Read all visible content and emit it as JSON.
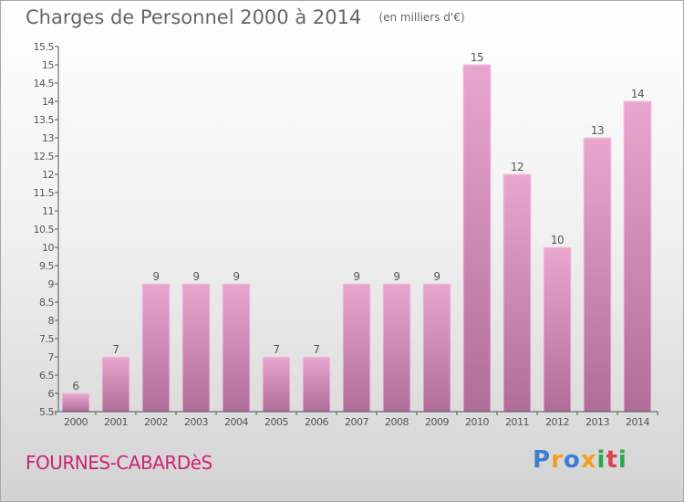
{
  "chart_data": {
    "type": "bar",
    "title": "Charges de Personnel 2000 à 2014",
    "subtitle": "(en milliers d'€)",
    "categories": [
      "2000",
      "2001",
      "2002",
      "2003",
      "2004",
      "2005",
      "2006",
      "2007",
      "2008",
      "2009",
      "2010",
      "2011",
      "2012",
      "2013",
      "2014"
    ],
    "values": [
      6,
      7,
      9,
      9,
      9,
      7,
      7,
      9,
      9,
      9,
      15,
      12,
      10,
      13,
      14
    ],
    "ylim": [
      5.5,
      15.5
    ],
    "yticks": [
      "5.5",
      "6",
      "6.5",
      "7",
      "7.5",
      "8",
      "8.5",
      "9",
      "9.5",
      "10",
      "10.5",
      "11",
      "11.5",
      "12",
      "12.5",
      "13",
      "13.5",
      "14",
      "14.5",
      "15",
      "15.5"
    ],
    "grid": false,
    "legend": "none",
    "bar_color": "#d98ebb"
  },
  "footer": {
    "commune": "FOURNES-CABARDèS",
    "logo_letters": [
      "P",
      "r",
      "o",
      "x",
      "i",
      "t",
      "i"
    ],
    "logo_colors": [
      "#3a7fd1",
      "#f0a020",
      "#3a7fd1",
      "#f0a020",
      "#2aa84a",
      "#e04050",
      "#2aa84a"
    ]
  }
}
